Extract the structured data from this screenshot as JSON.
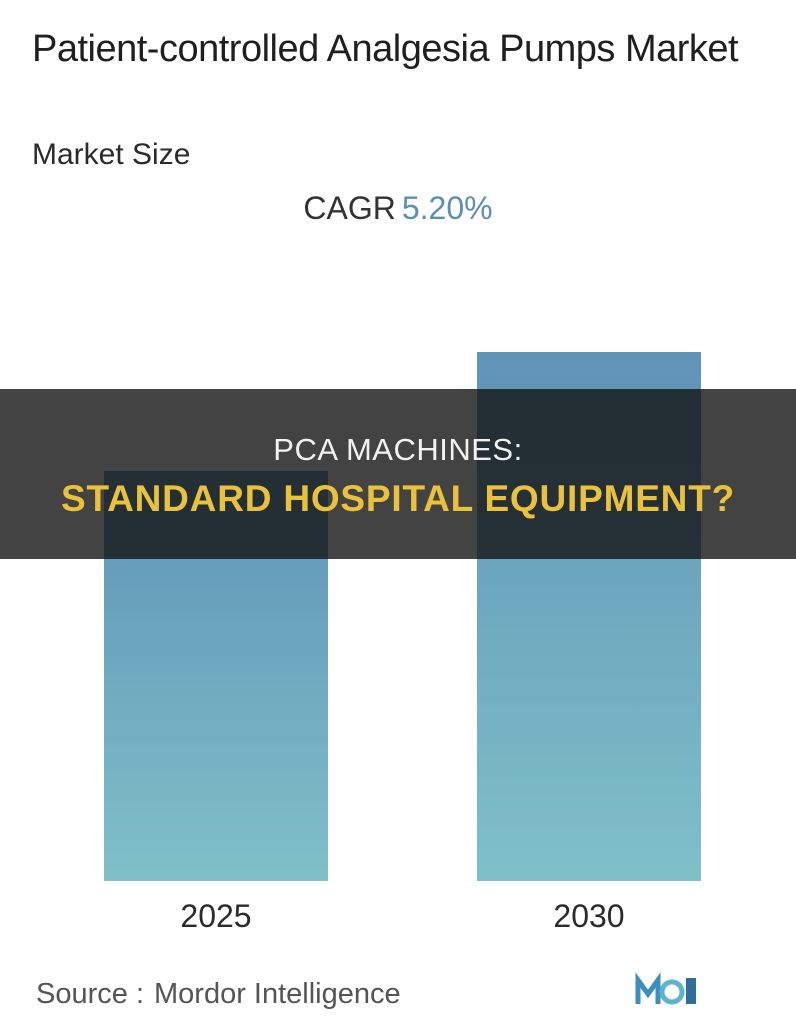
{
  "header": {
    "title": "Patient-controlled Analgesia Pumps Market",
    "subtitle": "Market Size",
    "cagr_label": "CAGR",
    "cagr_value": "5.20%"
  },
  "overlay": {
    "line1": "PCA MACHINES:",
    "line2": "STANDARD HOSPITAL EQUIPMENT?"
  },
  "footer": {
    "source_label": "Source :",
    "source_name": "Mordor Intelligence"
  },
  "colors": {
    "bar_top": "#5f93b8",
    "bar_bottom": "#7fc0c8",
    "accent": "#5b8fb4",
    "overlay_text": "#e9c13b"
  },
  "chart_data": {
    "type": "bar",
    "categories": [
      "2025",
      "2030"
    ],
    "values": [
      1.0,
      1.29
    ],
    "title": "Patient-controlled Analgesia Pumps Market",
    "subtitle": "Market Size",
    "xlabel": "",
    "ylabel": "",
    "grid": false
  }
}
